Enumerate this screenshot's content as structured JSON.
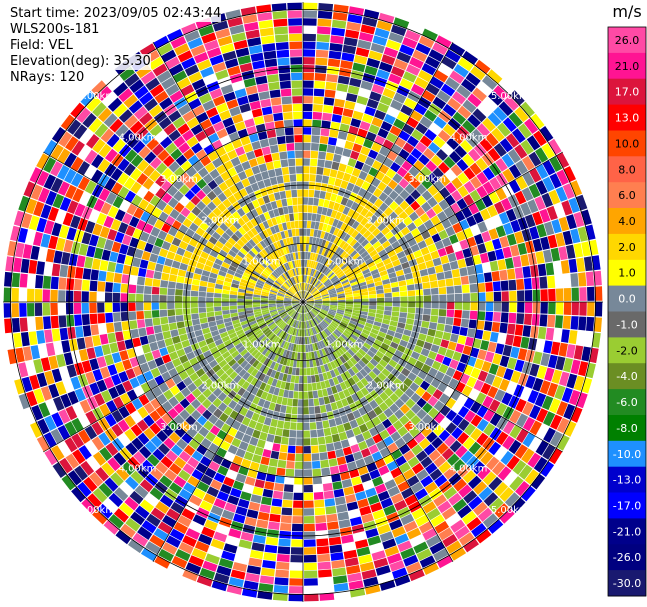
{
  "header": {
    "start_time": "Start time: 2023/09/05 02:43:44",
    "instrument": "WLS200s-181",
    "field": "Field: VEL",
    "elevation": "Elevation(deg): 35.30",
    "nrays": "NRays: 120"
  },
  "colorbar": {
    "unit": "m/s",
    "ticks": [
      "26.0",
      "21.0",
      "17.0",
      "13.0",
      "10.0",
      "8.0",
      "6.0",
      "4.0",
      "2.0",
      "1.0",
      "0.0",
      "-1.0",
      "-2.0",
      "-4.0",
      "-6.0",
      "-8.0",
      "-10.0",
      "-13.0",
      "-17.0",
      "-21.0",
      "-26.0",
      "-30.0"
    ],
    "colors": [
      "#ff4aa5",
      "#ff1493",
      "#dc143c",
      "#ff0000",
      "#ff4500",
      "#ff6347",
      "#ff7f50",
      "#ffa500",
      "#ffd700",
      "#ffff00",
      "#778899",
      "#696969",
      "#9acd32",
      "#6b8e23",
      "#228b22",
      "#008000",
      "#1e90ff",
      "#0000cd",
      "#0000ff",
      "#00008b",
      "#000080",
      "#191970"
    ]
  },
  "range_labels": [
    "1.00km",
    "2.00km",
    "3.00km",
    "4.00km",
    "5.00km"
  ],
  "chart_data": {
    "type": "heatmap",
    "title": "",
    "field": "VEL",
    "unit": "m/s",
    "projection": "polar PPI",
    "rays": 120,
    "range_rings_km": [
      1,
      2,
      3,
      4,
      5
    ],
    "value_range": [
      -30,
      26
    ]
  }
}
